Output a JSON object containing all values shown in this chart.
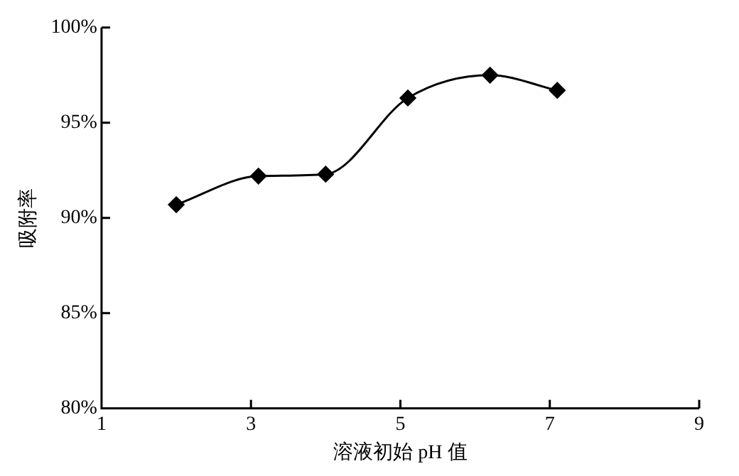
{
  "chart_data": {
    "type": "line",
    "xlabel": "溶液初始 pH 值",
    "ylabel": "吸附率",
    "x": [
      2.0,
      3.1,
      4.0,
      5.1,
      6.2,
      7.1
    ],
    "series": [
      {
        "color": "#000000",
        "values": [
          90.7,
          92.2,
          92.3,
          96.3,
          97.5,
          96.7
        ]
      }
    ],
    "xlim": [
      1,
      9
    ],
    "xticks": [
      1,
      3,
      5,
      7,
      9
    ],
    "ylim": [
      80,
      100
    ],
    "yticks": [
      {
        "value": 80,
        "label": "80%"
      },
      {
        "value": 85,
        "label": "85%"
      },
      {
        "value": 90,
        "label": "90%"
      },
      {
        "value": 95,
        "label": "95%"
      },
      {
        "value": 100,
        "label": "100%"
      }
    ],
    "marker": "diamond",
    "line_style": "solid",
    "grid": false,
    "legend": false
  }
}
